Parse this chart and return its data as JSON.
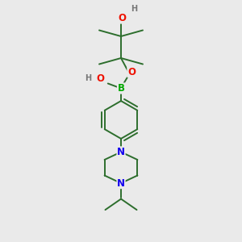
{
  "bg_color": "#eaeaea",
  "bond_color": "#2d6e2d",
  "atom_colors": {
    "B": "#00aa00",
    "O": "#ee1100",
    "N": "#1100ee",
    "H": "#777777",
    "C": "#2d6e2d"
  },
  "line_width": 1.4,
  "font_size": 8.5,
  "figsize": [
    3.0,
    3.0
  ],
  "dpi": 100
}
